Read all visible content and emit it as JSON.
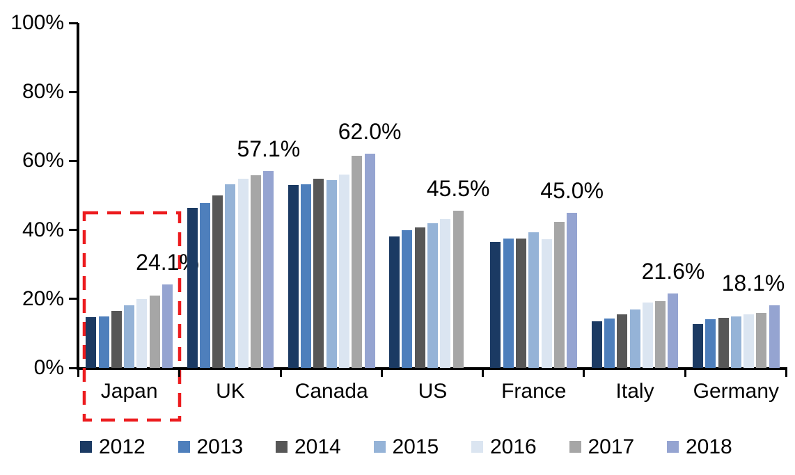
{
  "chart_data": {
    "type": "bar",
    "title": "",
    "xlabel": "",
    "ylabel": "",
    "categories": [
      "Japan",
      "UK",
      "Canada",
      "US",
      "France",
      "Italy",
      "Germany"
    ],
    "series": [
      {
        "name": "2012",
        "color": "#1B3A63",
        "values": [
          14.8,
          46.3,
          53.0,
          38.2,
          36.5,
          13.5,
          12.7
        ]
      },
      {
        "name": "2013",
        "color": "#4E7FBC",
        "values": [
          14.9,
          47.8,
          53.3,
          40.0,
          37.5,
          14.3,
          14.1
        ]
      },
      {
        "name": "2014",
        "color": "#575757",
        "values": [
          16.5,
          50.0,
          54.8,
          40.8,
          37.5,
          15.5,
          14.5
        ]
      },
      {
        "name": "2015",
        "color": "#95B3D7",
        "values": [
          18.1,
          53.3,
          54.5,
          42.0,
          39.3,
          17.0,
          14.9
        ]
      },
      {
        "name": "2016",
        "color": "#DBE5F1",
        "values": [
          20.0,
          54.8,
          56.0,
          43.2,
          37.3,
          19.0,
          15.5
        ]
      },
      {
        "name": "2017",
        "color": "#A6A6A6",
        "values": [
          21.0,
          55.8,
          61.5,
          45.5,
          42.3,
          19.3,
          16.0
        ]
      },
      {
        "name": "2018",
        "color": "#95A4D1",
        "values": [
          24.1,
          57.1,
          62.0,
          null,
          45.0,
          21.6,
          18.1
        ]
      }
    ],
    "group_max_labels": [
      "24.1%",
      "57.1%",
      "62.0%",
      "45.5%",
      "45.0%",
      "21.6%",
      "18.1%"
    ],
    "y_tick_labels": [
      "100%",
      "80%",
      "60%",
      "40%",
      "20%",
      "0%"
    ],
    "ylim": [
      0,
      100
    ],
    "grid": false,
    "legend_position": "bottom",
    "legend_entries": [
      "2012",
      "2013",
      "2014",
      "2015",
      "2016",
      "2017",
      "2018"
    ],
    "annotations": [
      {
        "type": "highlight-rectangle",
        "target_category": "Japan",
        "style": "dashed",
        "color": "#EC1B1E"
      }
    ]
  },
  "colors": {
    "background": "#FFFFFF",
    "axis": "#000000",
    "text": "#000000",
    "highlight": "#EC1B1E"
  }
}
